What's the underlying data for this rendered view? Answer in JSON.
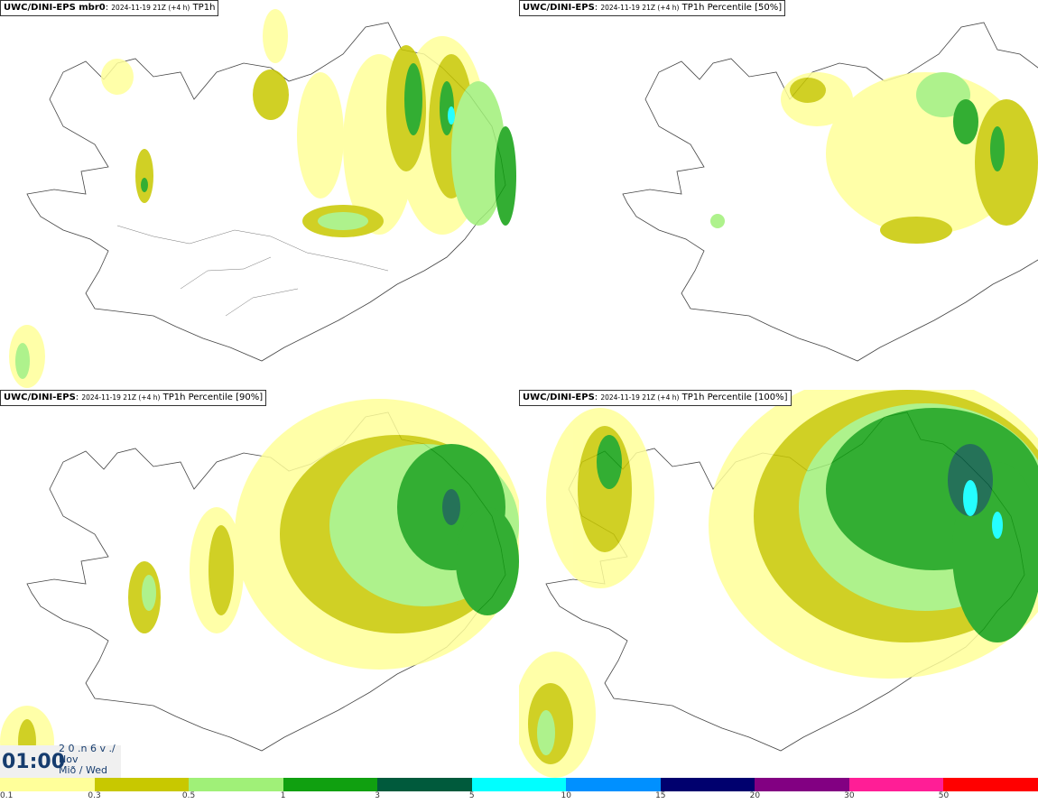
{
  "panels": [
    {
      "model": "UWC/DINI-EPS mbr0",
      "run": "2024-11-19 21Z (+4 h)",
      "field": "TP1h"
    },
    {
      "model": "UWC/DINI-EPS",
      "run": "2024-11-19 21Z (+4 h)",
      "field": "TP1h Percentile [50%]"
    },
    {
      "model": "UWC/DINI-EPS",
      "run": "2024-11-19 21Z (+4 h)",
      "field": "TP1h Percentile [90%]"
    },
    {
      "model": "UWC/DINI-EPS",
      "run": "2024-11-19 21Z (+4 h)",
      "field": "TP1h Percentile [100%]"
    }
  ],
  "valid_time": {
    "time": "01:00",
    "date_line1": "2 0 .n 6 v ./",
    "date_line2": "Nov",
    "date_line3": "Mið / Wed"
  },
  "colorbar": {
    "labels": [
      "0.1",
      "0.3",
      "0.5",
      "1",
      "3",
      "5",
      "10",
      "15",
      "20",
      "30",
      "50"
    ],
    "colors": [
      "#ffff9a",
      "#c8c800",
      "#a0f078",
      "#10a010",
      "#005a3c",
      "#00ffff",
      "#0090ff",
      "#00006e",
      "#820082",
      "#ff1e96",
      "#ff0000"
    ]
  }
}
